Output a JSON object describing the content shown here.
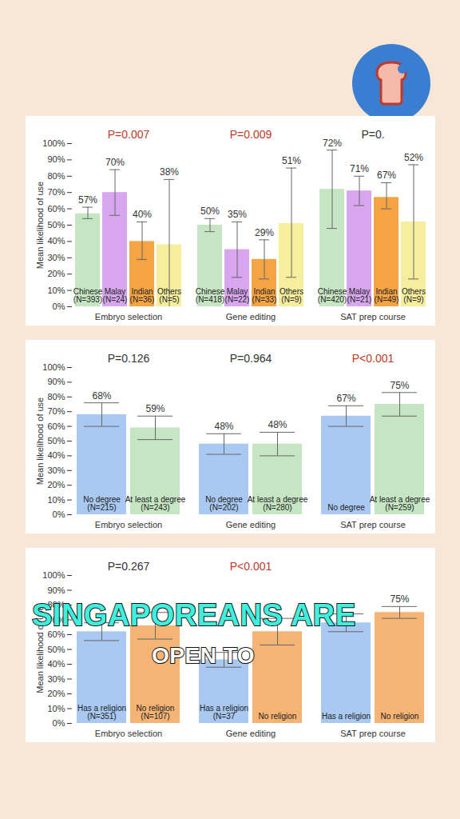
{
  "chart_data": [
    {
      "type": "bar",
      "y_label": "Mean likelihood of use",
      "categories": [
        "Embryo selection",
        "Gene editing",
        "SAT prep course"
      ],
      "series": [
        {
          "name": "Chinese",
          "color": "#c6e6c3",
          "values": [
            57,
            50,
            72
          ],
          "value_labels": [
            "57%",
            "50%",
            "72%"
          ],
          "n_labels": [
            "(N=393)",
            "(N=418)",
            "(N=420)"
          ],
          "error_low": [
            54,
            46,
            48
          ],
          "error_high": [
            61,
            54,
            96
          ]
        },
        {
          "name": "Malay",
          "color": "#d7a6ee",
          "values": [
            70,
            35,
            71
          ],
          "value_labels": [
            "70%",
            "35%",
            "71%"
          ],
          "n_labels": [
            "(N=24)",
            "(N=22)",
            "(N=21)"
          ],
          "error_low": [
            56,
            18,
            62
          ],
          "error_high": [
            84,
            52,
            80
          ]
        },
        {
          "name": "Indian",
          "color": "#f5a444",
          "values": [
            40,
            29,
            67
          ],
          "value_labels": [
            "40%",
            "29%",
            "67%"
          ],
          "n_labels": [
            "(N=36)",
            "(N=33)",
            "(N=49)"
          ],
          "error_low": [
            29,
            17,
            60
          ],
          "error_high": [
            52,
            41,
            76
          ]
        },
        {
          "name": "Others",
          "color": "#f6ee9c",
          "values": [
            38,
            51,
            52
          ],
          "value_labels": [
            "38%",
            "51%",
            "52%"
          ],
          "n_labels": [
            "(N=5)",
            "(N=9)",
            "(N=9)"
          ],
          "error_low": [
            0,
            18,
            17
          ],
          "error_high": [
            78,
            85,
            87
          ]
        }
      ],
      "p_values": [
        {
          "category": "Embryo selection",
          "label": "P=0.007",
          "color": "#c0392b"
        },
        {
          "category": "Gene editing",
          "label": "P=0.009",
          "color": "#c0392b"
        },
        {
          "category": "SAT prep course",
          "label": "P=0.",
          "color": "#333333"
        }
      ],
      "ylim": [
        0,
        100
      ],
      "yticks": [
        {
          "value": 0,
          "label": "0%"
        },
        {
          "value": 10,
          "label": "10%"
        },
        {
          "value": 20,
          "label": "20%"
        },
        {
          "value": 30,
          "label": "30%"
        },
        {
          "value": 40,
          "label": "40%"
        },
        {
          "value": 50,
          "label": "50%"
        },
        {
          "value": 60,
          "label": "60%"
        },
        {
          "value": 70,
          "label": "70%"
        },
        {
          "value": 80,
          "label": "80%"
        },
        {
          "value": 90,
          "label": "90%"
        },
        {
          "value": 100,
          "label": "100%"
        }
      ],
      "grid": false,
      "data_labels": true
    },
    {
      "type": "bar",
      "y_label": "Mean likelihood of use",
      "categories": [
        "Embryo selection",
        "Gene editing",
        "SAT prep course"
      ],
      "series": [
        {
          "name": "No degree",
          "color": "#a9c9f2",
          "values": [
            68,
            48,
            67
          ],
          "value_labels": [
            "68%",
            "48%",
            "67%"
          ],
          "n_labels": [
            "(N=215)",
            "(N=202)",
            null
          ],
          "error_low": [
            60,
            41,
            60
          ],
          "error_high": [
            76,
            55,
            74
          ]
        },
        {
          "name": "At least a degree",
          "color": "#c6e6c3",
          "values": [
            59,
            48,
            75
          ],
          "value_labels": [
            "59%",
            "48%",
            "75%"
          ],
          "n_labels": [
            "(N=243)",
            "(N=280)",
            "(N=259)"
          ],
          "error_low": [
            51,
            40,
            67
          ],
          "error_high": [
            67,
            56,
            83
          ]
        }
      ],
      "p_values": [
        {
          "category": "Embryo selection",
          "label": "P=0.126",
          "color": "#333333"
        },
        {
          "category": "Gene editing",
          "label": "P=0.964",
          "color": "#333333"
        },
        {
          "category": "SAT prep course",
          "label": "P<0.001",
          "color": "#c0392b"
        }
      ],
      "ylim": [
        0,
        100
      ],
      "yticks": [
        {
          "value": 0,
          "label": "0%"
        },
        {
          "value": 10,
          "label": "10%"
        },
        {
          "value": 20,
          "label": "20%"
        },
        {
          "value": 30,
          "label": "30%"
        },
        {
          "value": 40,
          "label": "40%"
        },
        {
          "value": 50,
          "label": "50%"
        },
        {
          "value": 60,
          "label": "60%"
        },
        {
          "value": 70,
          "label": "70%"
        },
        {
          "value": 80,
          "label": "80%"
        },
        {
          "value": 90,
          "label": "90%"
        },
        {
          "value": 100,
          "label": "100%"
        }
      ],
      "grid": false,
      "data_labels": true
    },
    {
      "type": "bar",
      "y_label": "Mean likelihood of use",
      "categories": [
        "Embryo selection",
        "Gene editing",
        "SAT prep course"
      ],
      "series": [
        {
          "name": "Has a religion",
          "color": "#a9c9f2",
          "values": [
            62,
            43,
            68
          ],
          "value_labels": [
            null,
            null,
            null
          ],
          "n_labels": [
            "(N=351)",
            "(N=37",
            null
          ],
          "error_low": [
            56,
            38,
            62
          ],
          "error_high": [
            68,
            48,
            74
          ]
        },
        {
          "name": "No religion",
          "color": "#f5b374",
          "values": [
            66,
            62,
            75
          ],
          "value_labels": [
            null,
            null,
            "75%"
          ],
          "n_labels": [
            "(N=107)",
            null,
            null
          ],
          "error_low": [
            57,
            53,
            71
          ],
          "error_high": [
            75,
            71,
            79
          ]
        }
      ],
      "p_values": [
        {
          "category": "Embryo selection",
          "label": "P=0.267",
          "color": "#333333"
        },
        {
          "category": "Gene editing",
          "label": "P<0.001",
          "color": "#c0392b"
        }
      ],
      "annotations": [
        "SINGAPOREANS ARE",
        "OPEN TO"
      ],
      "ylim": [
        0,
        100
      ],
      "yticks": [
        {
          "value": 0,
          "label": "0%"
        },
        {
          "value": 10,
          "label": "10%"
        },
        {
          "value": 20,
          "label": "20%"
        },
        {
          "value": 30,
          "label": "30%"
        },
        {
          "value": 40,
          "label": "40%"
        },
        {
          "value": 50,
          "label": "50%"
        },
        {
          "value": 60,
          "label": "60%"
        },
        {
          "value": 70,
          "label": "70%"
        },
        {
          "value": 80,
          "label": "80%"
        },
        {
          "value": 90,
          "label": "90%"
        },
        {
          "value": 100,
          "label": "100%"
        }
      ],
      "grid": false,
      "data_labels": true
    }
  ]
}
